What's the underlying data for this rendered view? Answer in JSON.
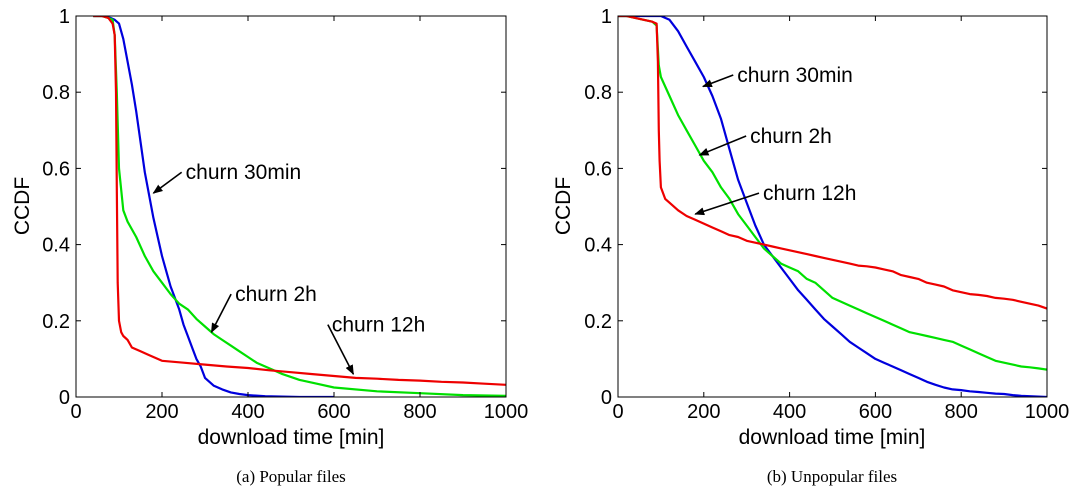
{
  "chart_data": [
    {
      "type": "line",
      "caption": "(a)  Popular files",
      "xlabel": "download time [min]",
      "ylabel": "CCDF",
      "xlim": [
        0,
        1000
      ],
      "ylim": [
        0,
        1
      ],
      "xticks": [
        "0",
        "200",
        "400",
        "600",
        "800",
        "1000"
      ],
      "yticks": [
        "0",
        "0.2",
        "0.4",
        "0.6",
        "0.8",
        "1"
      ],
      "grid": false,
      "series": [
        {
          "name": "churn 30min",
          "color": "#0000dd",
          "x": [
            40,
            60,
            80,
            90,
            100,
            110,
            120,
            130,
            140,
            150,
            160,
            170,
            180,
            190,
            200,
            210,
            220,
            230,
            240,
            250,
            260,
            270,
            280,
            290,
            300,
            320,
            340,
            360,
            380,
            400,
            440,
            480,
            520,
            560,
            600
          ],
          "y": [
            1.0,
            1.0,
            0.995,
            0.99,
            0.98,
            0.94,
            0.88,
            0.82,
            0.75,
            0.67,
            0.59,
            0.53,
            0.47,
            0.42,
            0.37,
            0.33,
            0.29,
            0.26,
            0.23,
            0.19,
            0.16,
            0.13,
            0.1,
            0.08,
            0.05,
            0.03,
            0.02,
            0.012,
            0.008,
            0.005,
            0.002,
            0.001,
            0.0,
            0.0,
            0.0
          ]
        },
        {
          "name": "churn 2h",
          "color": "#00e000",
          "x": [
            40,
            60,
            75,
            85,
            90,
            95,
            100,
            110,
            120,
            140,
            160,
            180,
            200,
            220,
            240,
            260,
            280,
            300,
            320,
            340,
            360,
            380,
            400,
            420,
            440,
            460,
            480,
            520,
            560,
            600,
            700,
            800,
            900,
            1000
          ],
          "y": [
            1.0,
            1.0,
            0.995,
            0.99,
            0.95,
            0.8,
            0.6,
            0.49,
            0.46,
            0.42,
            0.37,
            0.33,
            0.3,
            0.27,
            0.245,
            0.23,
            0.205,
            0.185,
            0.165,
            0.15,
            0.135,
            0.12,
            0.105,
            0.09,
            0.08,
            0.07,
            0.06,
            0.045,
            0.035,
            0.025,
            0.015,
            0.01,
            0.005,
            0.003
          ]
        },
        {
          "name": "churn 12h",
          "color": "#ee0000",
          "x": [
            40,
            60,
            75,
            85,
            90,
            93,
            95,
            97,
            100,
            105,
            110,
            120,
            130,
            150,
            170,
            200,
            250,
            300,
            350,
            400,
            450,
            500,
            550,
            600,
            650,
            700,
            750,
            800,
            850,
            900,
            950,
            1000
          ],
          "y": [
            1.0,
            1.0,
            0.995,
            0.98,
            0.95,
            0.8,
            0.55,
            0.3,
            0.2,
            0.17,
            0.16,
            0.15,
            0.13,
            0.12,
            0.11,
            0.095,
            0.09,
            0.085,
            0.08,
            0.076,
            0.07,
            0.065,
            0.06,
            0.055,
            0.05,
            0.048,
            0.045,
            0.043,
            0.04,
            0.038,
            0.035,
            0.032
          ]
        }
      ],
      "annotations": [
        {
          "text": "churn 30min",
          "x_text": 255,
          "y_text": 0.59,
          "x_arrow": 180,
          "y_arrow": 0.535
        },
        {
          "text": "churn 2h",
          "x_text": 370,
          "y_text": 0.27,
          "x_arrow": 315,
          "y_arrow": 0.17
        },
        {
          "text": "churn 12h",
          "x_text": 595,
          "y_text": 0.19,
          "x_arrow": 645,
          "y_arrow": 0.06
        }
      ]
    },
    {
      "type": "line",
      "caption": "(b)  Unpopular files",
      "xlabel": "download time [min]",
      "ylabel": "CCDF",
      "xlim": [
        0,
        1000
      ],
      "ylim": [
        0,
        1
      ],
      "xticks": [
        "0",
        "200",
        "400",
        "600",
        "800",
        "1000"
      ],
      "yticks": [
        "0",
        "0.2",
        "0.4",
        "0.6",
        "0.8",
        "1"
      ],
      "grid": false,
      "series": [
        {
          "name": "churn 30min",
          "color": "#0000dd",
          "x": [
            0,
            20,
            40,
            60,
            80,
            100,
            120,
            140,
            160,
            180,
            200,
            220,
            240,
            260,
            280,
            300,
            320,
            340,
            360,
            380,
            400,
            420,
            440,
            460,
            480,
            500,
            520,
            540,
            560,
            580,
            600,
            620,
            640,
            660,
            680,
            700,
            720,
            740,
            760,
            780,
            800,
            820,
            840,
            860,
            880,
            900,
            920,
            940,
            960,
            980,
            1000
          ],
          "y": [
            1.0,
            1.0,
            1.0,
            1.0,
            1.0,
            1.0,
            0.99,
            0.96,
            0.92,
            0.88,
            0.84,
            0.79,
            0.73,
            0.65,
            0.57,
            0.51,
            0.45,
            0.4,
            0.37,
            0.34,
            0.31,
            0.28,
            0.255,
            0.23,
            0.205,
            0.185,
            0.165,
            0.145,
            0.13,
            0.115,
            0.1,
            0.09,
            0.08,
            0.07,
            0.06,
            0.05,
            0.04,
            0.032,
            0.025,
            0.02,
            0.018,
            0.015,
            0.013,
            0.011,
            0.009,
            0.008,
            0.005,
            0.003,
            0.002,
            0.001,
            0.0
          ]
        },
        {
          "name": "churn 2h",
          "color": "#00e000",
          "x": [
            0,
            20,
            40,
            60,
            80,
            90,
            95,
            100,
            120,
            140,
            160,
            180,
            200,
            220,
            240,
            260,
            280,
            300,
            320,
            340,
            360,
            380,
            400,
            420,
            440,
            460,
            480,
            500,
            520,
            540,
            560,
            580,
            600,
            620,
            640,
            660,
            680,
            700,
            720,
            740,
            760,
            780,
            800,
            820,
            840,
            860,
            880,
            900,
            920,
            940,
            960,
            980,
            1000
          ],
          "y": [
            1.0,
            1.0,
            0.995,
            0.99,
            0.985,
            0.975,
            0.87,
            0.84,
            0.79,
            0.74,
            0.7,
            0.66,
            0.62,
            0.59,
            0.55,
            0.52,
            0.48,
            0.45,
            0.42,
            0.39,
            0.37,
            0.35,
            0.34,
            0.33,
            0.31,
            0.3,
            0.28,
            0.26,
            0.25,
            0.24,
            0.23,
            0.22,
            0.21,
            0.2,
            0.19,
            0.18,
            0.17,
            0.165,
            0.16,
            0.155,
            0.15,
            0.145,
            0.135,
            0.125,
            0.115,
            0.105,
            0.095,
            0.09,
            0.085,
            0.08,
            0.078,
            0.075,
            0.072
          ]
        },
        {
          "name": "churn 12h",
          "color": "#ee0000",
          "x": [
            0,
            20,
            40,
            60,
            80,
            90,
            93,
            95,
            97,
            100,
            110,
            120,
            140,
            160,
            180,
            200,
            220,
            240,
            260,
            280,
            300,
            320,
            340,
            360,
            380,
            400,
            420,
            440,
            460,
            480,
            500,
            520,
            540,
            560,
            580,
            600,
            620,
            640,
            660,
            680,
            700,
            720,
            740,
            760,
            780,
            800,
            820,
            840,
            860,
            880,
            900,
            920,
            940,
            960,
            980,
            1000
          ],
          "y": [
            1.0,
            1.0,
            0.995,
            0.99,
            0.985,
            0.98,
            0.88,
            0.7,
            0.62,
            0.55,
            0.52,
            0.51,
            0.49,
            0.475,
            0.465,
            0.455,
            0.445,
            0.435,
            0.425,
            0.42,
            0.41,
            0.405,
            0.4,
            0.395,
            0.39,
            0.385,
            0.38,
            0.375,
            0.37,
            0.365,
            0.36,
            0.355,
            0.35,
            0.345,
            0.343,
            0.34,
            0.335,
            0.33,
            0.32,
            0.315,
            0.31,
            0.3,
            0.295,
            0.29,
            0.28,
            0.275,
            0.27,
            0.268,
            0.265,
            0.26,
            0.258,
            0.255,
            0.25,
            0.245,
            0.24,
            0.232
          ]
        }
      ],
      "annotations": [
        {
          "text": "churn 30min",
          "x_text": 278,
          "y_text": 0.845,
          "x_arrow": 198,
          "y_arrow": 0.815
        },
        {
          "text": "churn 2h",
          "x_text": 308,
          "y_text": 0.685,
          "x_arrow": 190,
          "y_arrow": 0.635
        },
        {
          "text": "churn 12h",
          "x_text": 338,
          "y_text": 0.535,
          "x_arrow": 180,
          "y_arrow": 0.48
        }
      ]
    }
  ]
}
